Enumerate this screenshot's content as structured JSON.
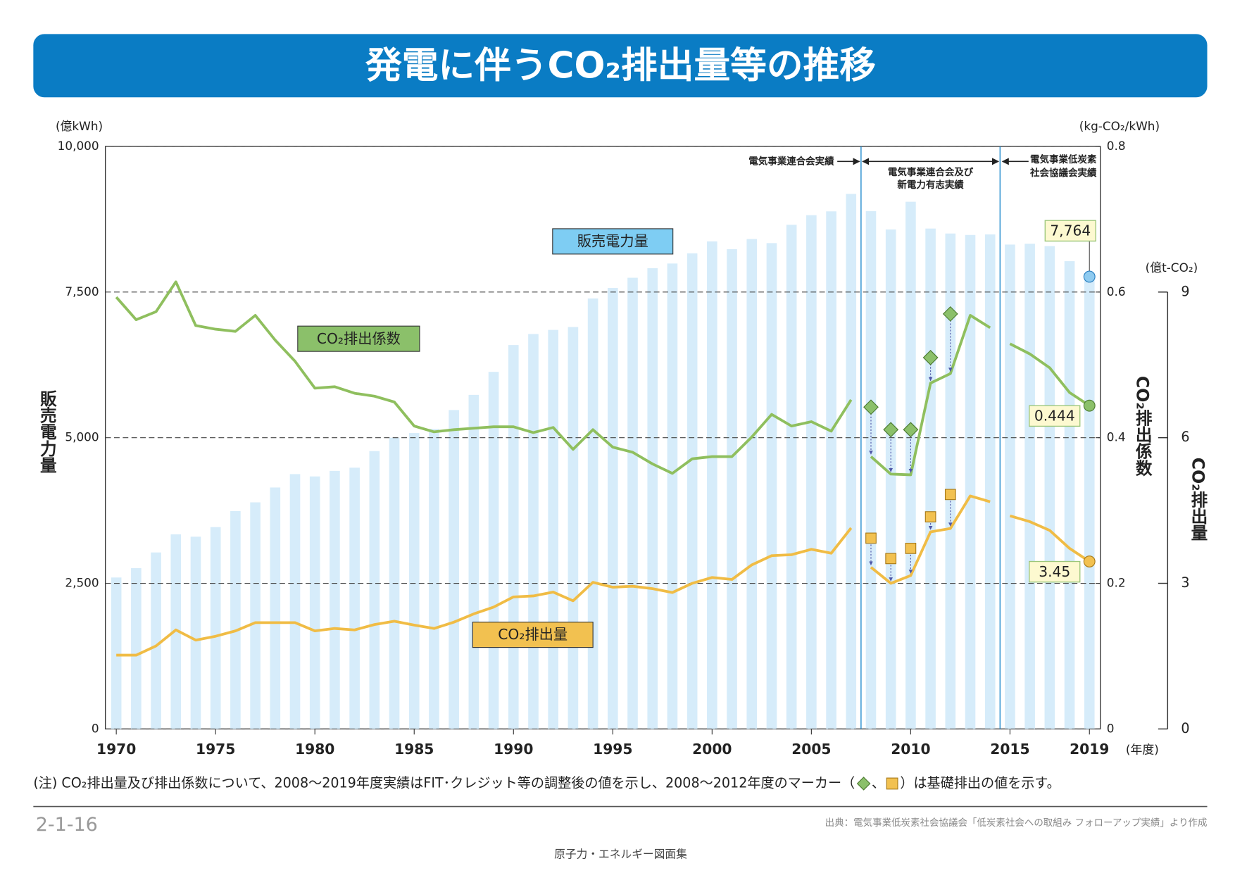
{
  "chart_data": {
    "type": "bar",
    "title": "発電に伴うCO₂排出量等の推移",
    "x": [
      1970,
      1971,
      1972,
      1973,
      1974,
      1975,
      1976,
      1977,
      1978,
      1979,
      1980,
      1981,
      1982,
      1983,
      1984,
      1985,
      1986,
      1987,
      1988,
      1989,
      1990,
      1991,
      1992,
      1993,
      1994,
      1995,
      1996,
      1997,
      1998,
      1999,
      2000,
      2001,
      2002,
      2003,
      2004,
      2005,
      2006,
      2007,
      2008,
      2009,
      2010,
      2011,
      2012,
      2013,
      2014,
      2015,
      2016,
      2017,
      2018,
      2019
    ],
    "xlim": [
      1969.45,
      2019.55
    ],
    "xticks": [
      1970,
      1975,
      1980,
      1985,
      1990,
      1995,
      2000,
      2005,
      2010,
      2015,
      2019
    ],
    "xunit": "(年度)",
    "ylim": [
      0,
      10000
    ],
    "yticks": [
      0,
      {
        "value": 2500,
        "label": "2,500"
      },
      {
        "value": 5000,
        "label": "5,000"
      },
      {
        "value": 7500,
        "label": "7,500"
      },
      {
        "value": 10000,
        "label": "10,000"
      }
    ],
    "ylabel": "販売電力量",
    "yunit": "(億kWh)",
    "y2lim": [
      0,
      0.8
    ],
    "y2ticks": [
      0,
      0.2,
      0.4,
      0.6,
      0.8
    ],
    "y2label": "CO₂排出係数",
    "y2unit": "(kg-CO₂/kWh)",
    "y3lim": [
      0,
      12
    ],
    "y3ticks": [
      0,
      3,
      6,
      9
    ],
    "y3label": "CO₂排出量",
    "y3unit": "(億t-CO₂)",
    "grid": true,
    "periods": [
      {
        "label": [
          "電気事業連合会実績"
        ],
        "end": 2007
      },
      {
        "label": [
          "電気事業連合会及び",
          "新電力有志実績"
        ],
        "end": 2014
      },
      {
        "label": [
          "電気事業低炭素",
          "社会協議会実績"
        ],
        "end": 2019
      }
    ],
    "series": [
      {
        "name": "販売電力量",
        "type": "bar",
        "color": "#d6ecfa",
        "box_color": "#7ecdf3",
        "values": [
          2600,
          2760,
          3030,
          3340,
          3300,
          3465,
          3740,
          3890,
          4145,
          4375,
          4335,
          4430,
          4485,
          4770,
          5000,
          5080,
          5150,
          5475,
          5735,
          6130,
          6590,
          6780,
          6850,
          6900,
          7390,
          7570,
          7745,
          7910,
          7990,
          8165,
          8370,
          8235,
          8410,
          8340,
          8655,
          8820,
          8885,
          9185,
          8890,
          8575,
          9050,
          8590,
          8505,
          8480,
          8490,
          8315,
          8330,
          8290,
          8030,
          7764
        ],
        "value_labels": [
          null,
          null,
          null,
          null,
          null,
          null,
          null,
          null,
          null,
          null,
          null,
          null,
          null,
          null,
          null,
          null,
          null,
          null,
          null,
          null,
          null,
          null,
          null,
          null,
          null,
          null,
          null,
          null,
          null,
          null,
          null,
          null,
          null,
          null,
          null,
          null,
          null,
          null,
          null,
          null,
          null,
          null,
          null,
          null,
          null,
          null,
          null,
          null,
          null,
          "7,764"
        ]
      },
      {
        "name": "CO₂排出係数",
        "type": "line",
        "axis": "y2",
        "color": "#8fbf5e",
        "box_color": "#8bc06a",
        "label_last": true,
        "values": [
          0.593,
          0.562,
          0.573,
          0.614,
          0.554,
          0.549,
          0.546,
          0.568,
          0.534,
          0.505,
          0.468,
          0.47,
          0.461,
          0.457,
          0.449,
          0.416,
          0.408,
          0.411,
          0.413,
          0.415,
          0.415,
          0.407,
          0.414,
          0.384,
          0.411,
          0.387,
          0.38,
          0.364,
          0.351,
          0.371,
          0.374,
          0.374,
          0.401,
          0.432,
          0.416,
          0.422,
          0.409,
          0.452,
          0.374,
          0.35,
          0.349,
          0.475,
          0.488,
          0.568,
          0.551,
          0.529,
          0.515,
          0.496,
          0.462,
          0.444
        ],
        "base": {
          "x": [
            2008,
            2009,
            2010,
            2011,
            2012
          ],
          "values": [
            0.442,
            0.411,
            0.411,
            0.51,
            0.57
          ]
        }
      },
      {
        "name": "CO₂排出量",
        "type": "line",
        "axis": "y3",
        "color": "#f0bc45",
        "box_color": "#f2c150",
        "label_last": true,
        "values": [
          1.52,
          1.52,
          1.71,
          2.04,
          1.83,
          1.91,
          2.02,
          2.19,
          2.19,
          2.19,
          2.02,
          2.07,
          2.04,
          2.15,
          2.22,
          2.14,
          2.07,
          2.2,
          2.37,
          2.51,
          2.72,
          2.74,
          2.82,
          2.64,
          3.02,
          2.92,
          2.94,
          2.89,
          2.81,
          3.0,
          3.12,
          3.08,
          3.38,
          3.57,
          3.59,
          3.7,
          3.62,
          4.14,
          3.33,
          3.0,
          3.16,
          4.06,
          4.13,
          4.8,
          4.68,
          4.39,
          4.27,
          4.09,
          3.72,
          3.45
        ],
        "base": {
          "x": [
            2008,
            2009,
            2010,
            2011,
            2012
          ],
          "values": [
            3.93,
            3.51,
            3.72,
            4.37,
            4.83
          ]
        }
      }
    ]
  },
  "note_parts": [
    "(注) CO₂排出量及び排出係数について、2008～2019年度実績はFIT･クレジット等の調整後の値を示し、2008～2012年度のマーカー（",
    "、",
    "）は基礎排出の値を示す。"
  ],
  "figure_number": "2-1-16",
  "source": "出典：電気事業低炭素社会協議会「低炭素社会への取組み フォローアップ実績」より作成",
  "footer": "原子力・エネルギー図面集"
}
